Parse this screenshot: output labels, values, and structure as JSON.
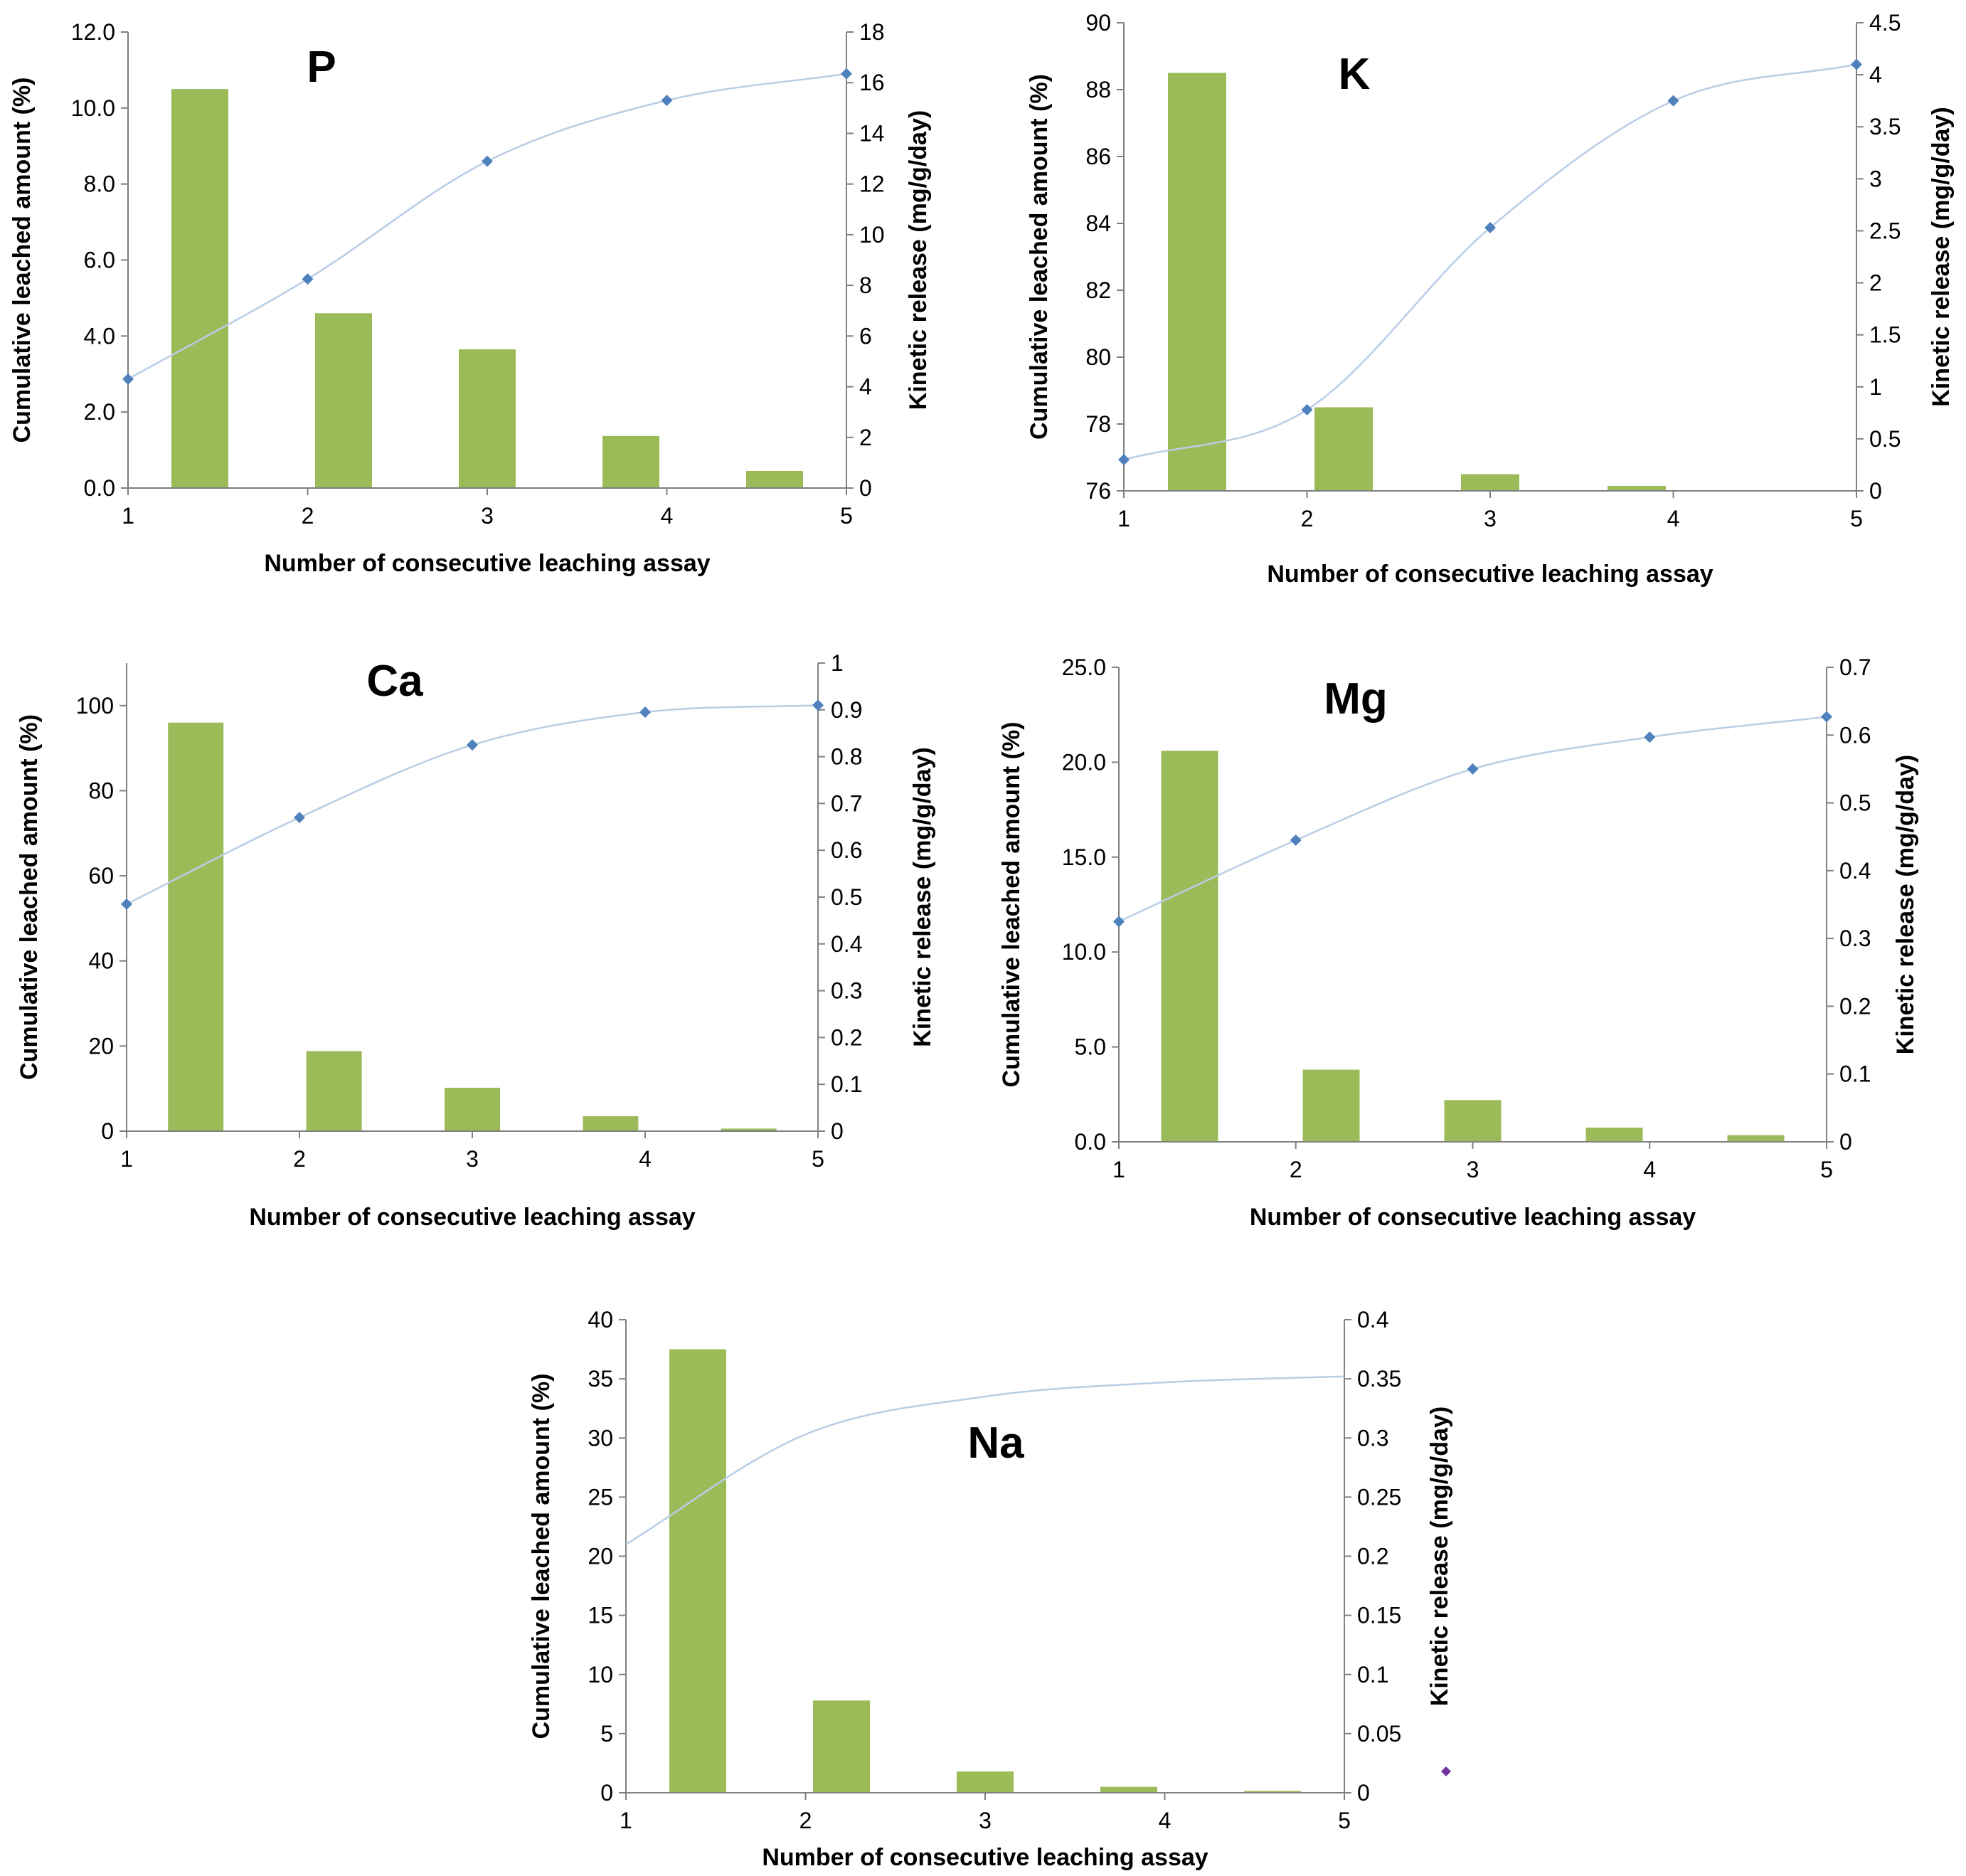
{
  "chart_data": [
    {
      "type": "bar",
      "title": "P",
      "xlabel": "Number of consecutive  leaching assay",
      "ylabel": "Cumulative leached amount (%)",
      "y2label": "Kinetic release (mg/g/day)",
      "x_ticks": [
        "1",
        "2",
        "3",
        "4",
        "5"
      ],
      "ylim": [
        0,
        12
      ],
      "y_ticks": [
        "0.0",
        "2.0",
        "4.0",
        "6.0",
        "8.0",
        "10.0",
        "12.0"
      ],
      "y2lim": [
        0,
        18
      ],
      "y2_ticks": [
        "0",
        "2",
        "4",
        "6",
        "8",
        "10",
        "12",
        "14",
        "16",
        "18"
      ],
      "bar_positions": [
        1.4,
        2.2,
        3.0,
        3.8,
        4.6
      ],
      "bar_values": [
        10.5,
        4.6,
        3.65,
        1.37,
        0.45
      ],
      "line_x": [
        1,
        2,
        3,
        4,
        5
      ],
      "line_values": [
        4.3,
        8.25,
        12.9,
        15.3,
        16.35
      ],
      "bar_color": "#9bbb59",
      "line_color": "#b9cde5",
      "marker_color": "#4f81bd",
      "grid": false
    },
    {
      "type": "bar",
      "title": "K",
      "xlabel": "Number of consecutive  leaching assay",
      "ylabel": "Cumulative leached amount (%)",
      "y2label": "Kinetic release (mg/g/day)",
      "x_ticks": [
        "1",
        "2",
        "3",
        "4",
        "5"
      ],
      "ylim": [
        76,
        90
      ],
      "y_ticks": [
        "76",
        "78",
        "80",
        "82",
        "84",
        "86",
        "88",
        "90"
      ],
      "y2lim": [
        0,
        4.5
      ],
      "y2_ticks": [
        "0",
        "0.5",
        "1",
        "1.5",
        "2",
        "2.5",
        "3",
        "3.5",
        "4",
        "4.5"
      ],
      "bar_positions": [
        1.4,
        2.2,
        3.0,
        3.8,
        4.6
      ],
      "bar_values": [
        88.5,
        78.5,
        76.5,
        76.15,
        76.02
      ],
      "line_x": [
        1,
        2,
        3,
        4,
        5
      ],
      "line_values": [
        0.3,
        0.78,
        2.53,
        3.75,
        4.1
      ],
      "bar_color": "#9bbb59",
      "line_color": "#b9cde5",
      "marker_color": "#4f81bd",
      "grid": false
    },
    {
      "type": "bar",
      "title": "Ca",
      "xlabel": "Number of consecutive  leaching assay",
      "ylabel": "Cumulative leached amount (%)",
      "y2label": "Kinetic release (mg/g/day)",
      "x_ticks": [
        "1",
        "2",
        "3",
        "4",
        "5"
      ],
      "ylim": [
        0,
        110
      ],
      "y_ticks": [
        "0",
        "20",
        "40",
        "60",
        "80",
        "100"
      ],
      "y2lim": [
        0,
        1
      ],
      "y2_ticks": [
        "0",
        "0.1",
        "0.2",
        "0.3",
        "0.4",
        "0.5",
        "0.6",
        "0.7",
        "0.8",
        "0.9",
        "1"
      ],
      "bar_positions": [
        1.4,
        2.2,
        3.0,
        3.8,
        4.6
      ],
      "bar_values": [
        96,
        18.8,
        10.2,
        3.5,
        0.6
      ],
      "line_x": [
        1,
        2,
        3,
        4,
        5
      ],
      "line_values": [
        0.485,
        0.67,
        0.825,
        0.895,
        0.91
      ],
      "bar_color": "#9bbb59",
      "line_color": "#b9cde5",
      "marker_color": "#4f81bd",
      "grid": false
    },
    {
      "type": "bar",
      "title": "Mg",
      "xlabel": "Number of consecutive  leaching assay",
      "ylabel": "Cumulative leached amount (%)",
      "y2label": "Kinetic release (mg/g/day)",
      "x_ticks": [
        "1",
        "2",
        "3",
        "4",
        "5"
      ],
      "ylim": [
        0,
        25
      ],
      "y_ticks": [
        "0.0",
        "5.0",
        "10.0",
        "15.0",
        "20.0",
        "25.0"
      ],
      "y2lim": [
        0,
        0.7
      ],
      "y2_ticks": [
        "0",
        "0.1",
        "0.2",
        "0.3",
        "0.4",
        "0.5",
        "0.6",
        "0.7"
      ],
      "bar_positions": [
        1.4,
        2.2,
        3.0,
        3.8,
        4.6
      ],
      "bar_values": [
        20.6,
        3.8,
        2.2,
        0.75,
        0.35
      ],
      "line_x": [
        1,
        2,
        3,
        4,
        5
      ],
      "line_values": [
        0.325,
        0.445,
        0.55,
        0.597,
        0.627
      ],
      "bar_color": "#9bbb59",
      "line_color": "#b9cde5",
      "marker_color": "#4f81bd",
      "grid": false
    },
    {
      "type": "bar",
      "title": "Na",
      "xlabel": "Number of consecutive  leaching assay",
      "ylabel": "Cumulative leached amount (%)",
      "y2label": "Kinetic release (mg/g/day)",
      "x_ticks": [
        "1",
        "2",
        "3",
        "4",
        "5"
      ],
      "ylim": [
        0,
        40
      ],
      "y_ticks": [
        "0",
        "5",
        "10",
        "15",
        "20",
        "25",
        "30",
        "35",
        "40"
      ],
      "y2lim": [
        0,
        0.4
      ],
      "y2_ticks": [
        "0",
        "0.05",
        "0.1",
        "0.15",
        "0.2",
        "0.25",
        "0.3",
        "0.35",
        "0.4"
      ],
      "bar_positions": [
        1.4,
        2.2,
        3.0,
        3.8,
        4.6
      ],
      "bar_values": [
        37.5,
        7.8,
        1.8,
        0.5,
        0.15
      ],
      "line_x": [
        1,
        2,
        3,
        4,
        5
      ],
      "line_values": [
        0.21,
        0.303,
        0.335,
        0.347,
        0.352
      ],
      "bar_color": "#9bbb59",
      "line_color": "#b9cde5",
      "marker_color": "#7030a0",
      "grid": false
    }
  ]
}
